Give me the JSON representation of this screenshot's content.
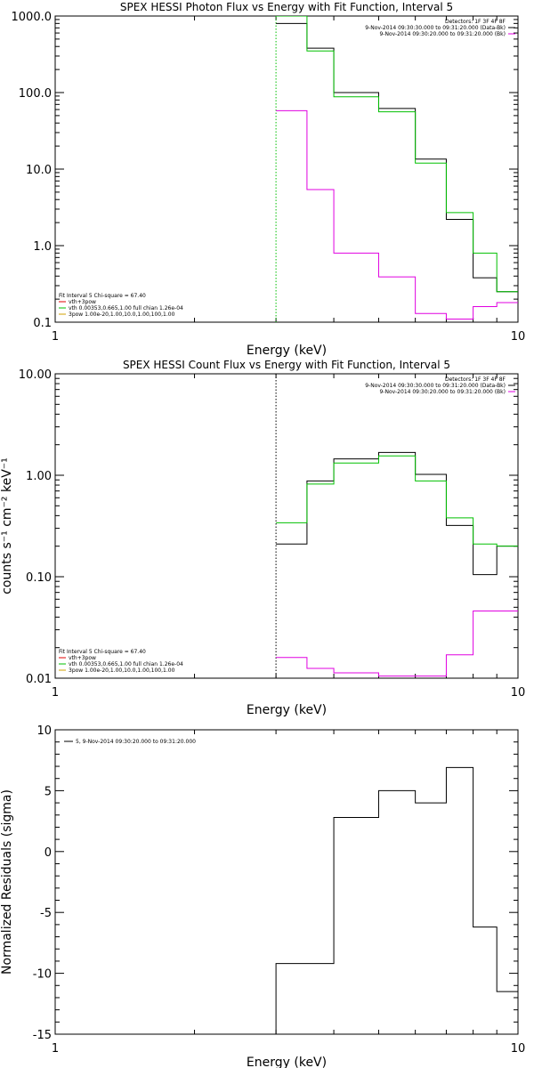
{
  "chart_data": [
    {
      "type": "line",
      "title": "SPEX HESSI Photon Flux vs Energy with Fit Function, Interval 5",
      "xlabel": "Energy (keV)",
      "ylabel": "",
      "xscale": "log",
      "yscale": "log",
      "xlim": [
        1,
        10
      ],
      "ylim": [
        0.1,
        1000
      ],
      "x_ticks": [
        "1",
        "10"
      ],
      "y_ticks": [
        "0.1",
        "1.0",
        "10.0",
        "100.0",
        "1000.0"
      ],
      "vline": {
        "x": 3,
        "color": "#00c000"
      },
      "legend_top_right": [
        {
          "text": "Detectors: 1F 3F 4F 8F",
          "color": "#000000"
        },
        {
          "text": "9-Nov-2014 09:30:30.000 to 09:31:20.000 (Data-Bk)",
          "color": "#000000"
        },
        {
          "text": "9-Nov-2014 09:30:20.000 to 09:31:20.000 (Bk)",
          "color": "#e000e0"
        }
      ],
      "legend_bottom_left": [
        {
          "text": "Fit Interval 5   Chi-square = 67.40",
          "color": ""
        },
        {
          "text": "vth+3pow",
          "color": "#e00000"
        },
        {
          "text": "vth 0.00353,0.665,1.00   full chian 1.26e-04",
          "color": "#00c000"
        },
        {
          "text": "3pow 1.00e-20,1.00,10.0,1.00,100,1.00",
          "color": "#d0a000"
        }
      ],
      "edges": [
        3,
        3.5,
        4,
        5,
        6,
        7,
        8,
        9,
        10
      ],
      "series": [
        {
          "name": "Data-Bk",
          "color": "#000000",
          "values": [
            800,
            380,
            100,
            62,
            13.5,
            2.2,
            0.38,
            0.25
          ]
        },
        {
          "name": "",
          "color": "#00c000",
          "values": [
            1500,
            350,
            88,
            56,
            12,
            2.7,
            0.8,
            0.25
          ]
        },
        {
          "name": "Bk",
          "color": "#e000e0",
          "values": [
            58,
            5.4,
            0.8,
            0.39,
            0.13,
            0.11,
            0.16,
            0.18
          ]
        }
      ]
    },
    {
      "type": "line",
      "title": "SPEX HESSI Count Flux vs Energy with Fit Function, Interval 5",
      "xlabel": "Energy (keV)",
      "ylabel": "counts s⁻¹ cm⁻² keV⁻¹",
      "xscale": "log",
      "yscale": "log",
      "xlim": [
        1,
        10
      ],
      "ylim": [
        0.01,
        10
      ],
      "x_ticks": [
        "1",
        "10"
      ],
      "y_ticks": [
        "0.01",
        "0.10",
        "1.00",
        "10.00"
      ],
      "vline": {
        "x": 3,
        "color": "#000000"
      },
      "legend_top_right": [
        {
          "text": "Detectors: 1F 3F 4F 8F",
          "color": "#000000"
        },
        {
          "text": "9-Nov-2014 09:30:30.000 to 09:31:20.000 (Data-Bk)",
          "color": "#000000"
        },
        {
          "text": "9-Nov-2014 09:30:20.000 to 09:31:20.000 (Bk)",
          "color": "#e000e0"
        }
      ],
      "legend_bottom_left": [
        {
          "text": "Fit Interval 5   Chi-square = 67.40",
          "color": ""
        },
        {
          "text": "vth+3pow",
          "color": "#e00000"
        },
        {
          "text": "vth 0.00353,0.665,1.00   full chian 1.26e-04",
          "color": "#00c000"
        },
        {
          "text": "3pow 1.00e-20,1.00,10.0,1.00,100,1.00",
          "color": "#d0a000"
        }
      ],
      "edges": [
        3,
        3.5,
        4,
        5,
        6,
        7,
        8,
        9,
        10
      ],
      "series": [
        {
          "name": "Data-Bk",
          "color": "#000000",
          "values": [
            0.21,
            0.88,
            1.45,
            1.68,
            1.02,
            0.32,
            0.105,
            0.2
          ]
        },
        {
          "name": "",
          "color": "#00c000",
          "values": [
            0.34,
            0.82,
            1.32,
            1.55,
            0.88,
            0.38,
            0.21,
            0.2
          ]
        },
        {
          "name": "Bk",
          "color": "#e000e0",
          "values": [
            0.016,
            0.0125,
            0.0113,
            0.0105,
            0.0105,
            0.017,
            0.046,
            0.046
          ]
        }
      ]
    },
    {
      "type": "line",
      "title": "",
      "xlabel": "Energy (keV)",
      "ylabel": "Normalized Residuals (sigma)",
      "xscale": "log",
      "yscale": "linear",
      "xlim": [
        1,
        10
      ],
      "ylim": [
        -15,
        10
      ],
      "x_ticks": [
        "1",
        "10"
      ],
      "y_ticks": [
        "-15",
        "-10",
        "-5",
        "0",
        "5",
        "10"
      ],
      "legend_top_left": [
        {
          "text": "5, 9-Nov-2014 09:30:20.000 to 09:31:20.000",
          "color": "#000000"
        }
      ],
      "edges": [
        3,
        4,
        5,
        6,
        7,
        8,
        9,
        10
      ],
      "series": [
        {
          "name": "",
          "color": "#000000",
          "values": [
            -9.2,
            2.8,
            5.0,
            4.0,
            6.9,
            -6.2,
            -11.5
          ],
          "start_from": -15
        }
      ]
    }
  ]
}
